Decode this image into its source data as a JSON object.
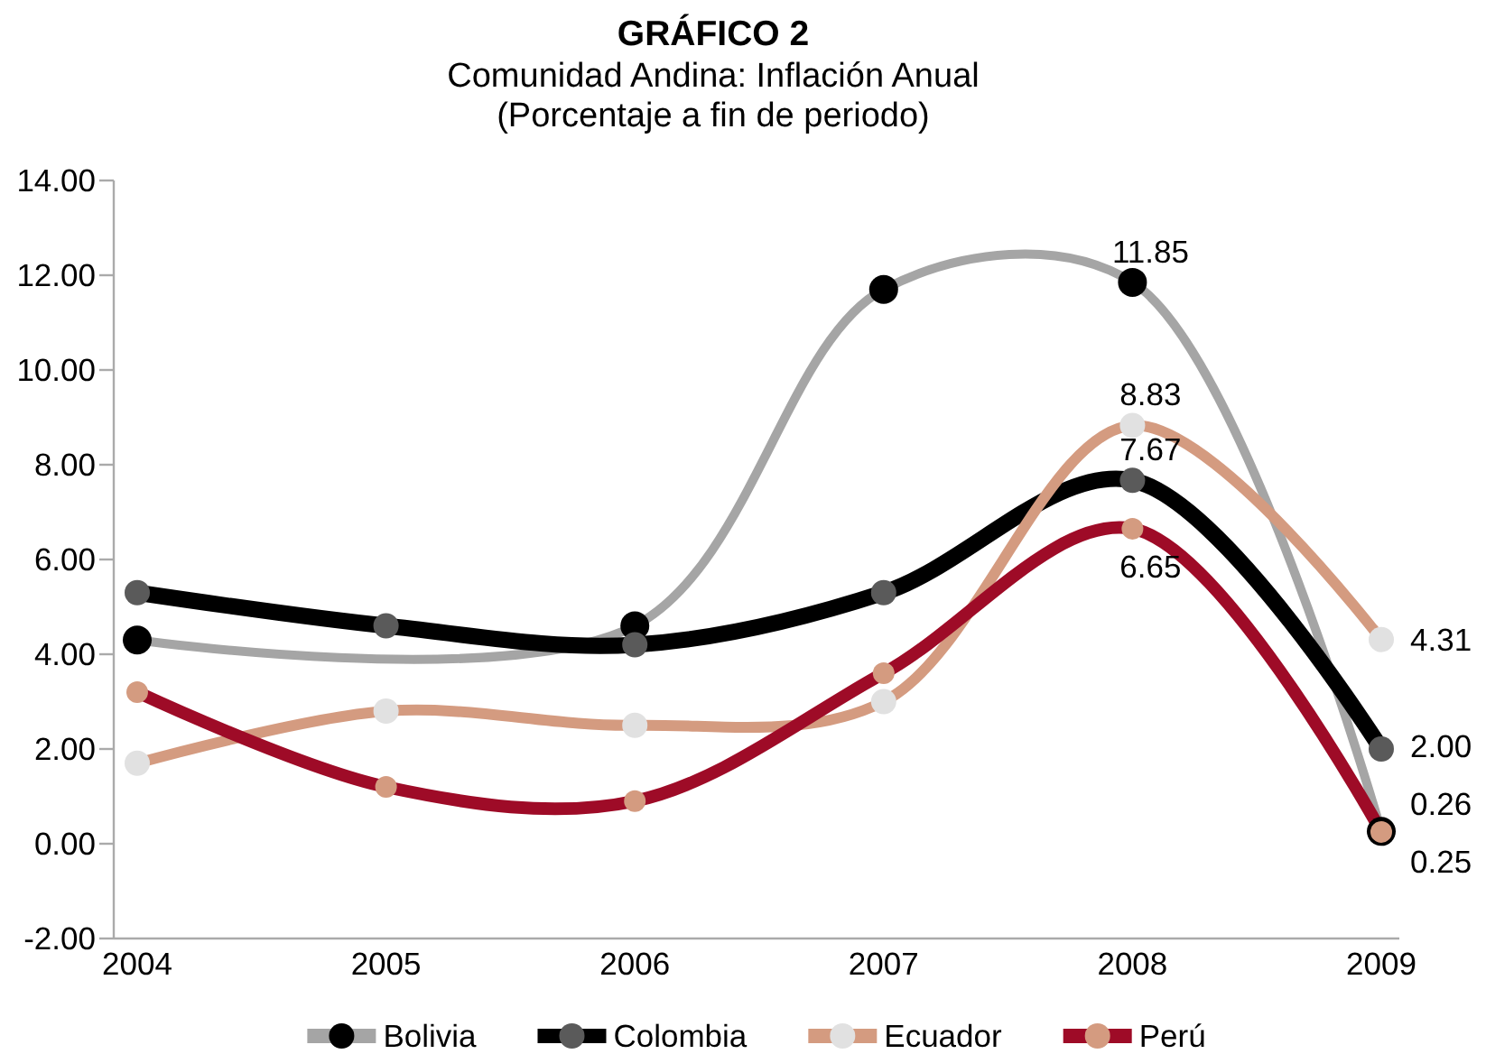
{
  "chart_data": {
    "type": "line",
    "title": "GRÁFICO 2",
    "subtitle": "Comunidad Andina: Inflación Anual\n(Porcentaje a fin de periodo)",
    "categories": [
      "2004",
      "2005",
      "2006",
      "2007",
      "2008",
      "2009"
    ],
    "series": [
      {
        "name": "Bolivia",
        "color": "#a5a5a5",
        "colors": [
          "#000000",
          null,
          "#000000",
          "#000000",
          "#000000",
          "#000000"
        ],
        "values": [
          4.3,
          null,
          4.6,
          11.7,
          11.85,
          0.26
        ],
        "value_labels": [
          null,
          null,
          null,
          null,
          "11.85",
          "0.26"
        ]
      },
      {
        "name": "Colombia",
        "color": "#000000",
        "colors": [
          "#5a5a5a",
          "#5a5a5a",
          "#5a5a5a",
          "#5a5a5a",
          "#5a5a5a",
          "#5a5a5a"
        ],
        "values": [
          5.3,
          4.6,
          4.2,
          5.3,
          7.67,
          2.0
        ],
        "value_labels": [
          null,
          null,
          null,
          null,
          "7.67",
          "2.00"
        ]
      },
      {
        "name": "Ecuador",
        "color": "#d49b80",
        "colors": [
          "#e1e1e1",
          "#e1e1e1",
          "#e1e1e1",
          "#e1e1e1",
          "#e1e1e1",
          "#e1e1e1"
        ],
        "values": [
          1.7,
          2.8,
          2.5,
          3.0,
          8.83,
          4.31
        ],
        "value_labels": [
          null,
          null,
          null,
          null,
          "8.83",
          "4.31"
        ]
      },
      {
        "name": "Perú",
        "color": "#9e0b27",
        "colors": [
          "#d49b80",
          "#d49b80",
          "#d49b80",
          "#d49b80",
          "#d49b80",
          "#d49b80"
        ],
        "values": [
          3.2,
          1.2,
          0.9,
          3.6,
          6.65,
          0.25
        ],
        "value_labels": [
          null,
          null,
          null,
          null,
          "6.65",
          "0.25"
        ]
      }
    ],
    "ylim": [
      -2,
      14
    ],
    "yticks": [
      {
        "value": -2,
        "label": "-2.00"
      },
      {
        "value": 0,
        "label": "0.00"
      },
      {
        "value": 2,
        "label": "2.00"
      },
      {
        "value": 4,
        "label": "4.00"
      },
      {
        "value": 6,
        "label": "6.00"
      },
      {
        "value": 8,
        "label": "8.00"
      },
      {
        "value": 10,
        "label": "10.00"
      },
      {
        "value": 12,
        "label": "12.00"
      },
      {
        "value": 14,
        "label": "14.00"
      }
    ],
    "legend": "bottom",
    "marker": "circle",
    "line_style": "solid"
  }
}
